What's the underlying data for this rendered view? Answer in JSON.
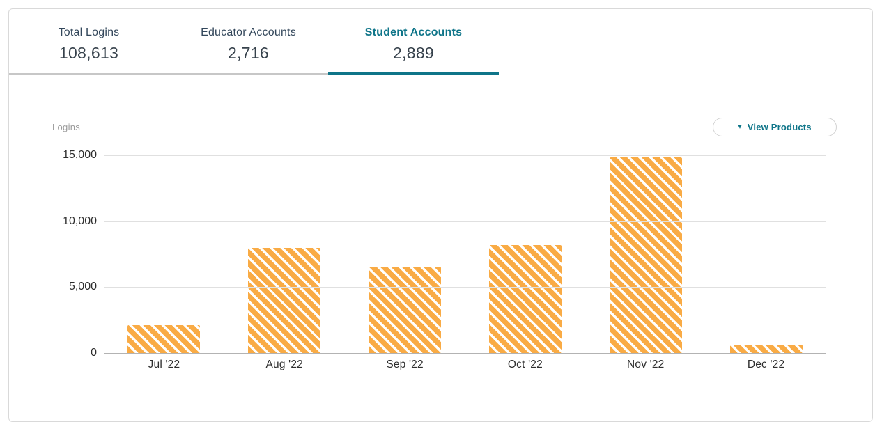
{
  "tabs": [
    {
      "label": "Total Logins",
      "value": "108,613",
      "active": false
    },
    {
      "label": "Educator Accounts",
      "value": "2,716",
      "active": false
    },
    {
      "label": "Student Accounts",
      "value": "2,889",
      "active": true
    }
  ],
  "toolbar": {
    "view_products_label": "View Products",
    "caret_icon": "▾"
  },
  "chart_data": {
    "type": "bar",
    "title": "",
    "xlabel": "",
    "ylabel": "Logins",
    "categories": [
      "Jul '22",
      "Aug '22",
      "Sep '22",
      "Oct '22",
      "Nov '22",
      "Dec '22"
    ],
    "values": [
      2100,
      7950,
      6550,
      8200,
      14850,
      650
    ],
    "ylim": [
      0,
      15000
    ],
    "yticks": [
      0,
      5000,
      10000,
      15000
    ],
    "ytick_labels": [
      "0",
      "5,000",
      "10,000",
      "15,000"
    ],
    "grid": true,
    "legend": false,
    "bar_style": "diagonal-striped",
    "bar_color": "#f9ab45"
  },
  "colors": {
    "accent_teal": "#0f7589",
    "bar_orange": "#f9ab45",
    "tab_label": "#33475b",
    "tab_value": "#37424c",
    "gridline": "#e0e0e0",
    "axis_line": "#b3b3b3",
    "muted_text": "#9b9b9b"
  }
}
